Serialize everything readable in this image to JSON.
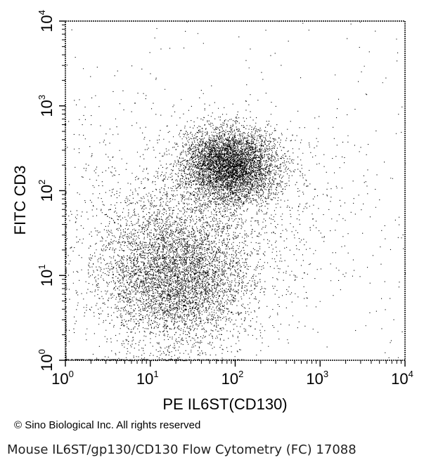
{
  "chart_data": {
    "type": "scatter",
    "xlabel": "PE  IL6ST(CD130)",
    "ylabel": "FITC CD3",
    "x_scale": "log",
    "y_scale": "log",
    "xlim": [
      1,
      10000
    ],
    "ylim": [
      1,
      10000
    ],
    "x_ticks": [
      {
        "base": "10",
        "exp": "0"
      },
      {
        "base": "10",
        "exp": "1"
      },
      {
        "base": "10",
        "exp": "2"
      },
      {
        "base": "10",
        "exp": "3"
      },
      {
        "base": "10",
        "exp": "4"
      }
    ],
    "y_ticks": [
      {
        "base": "10",
        "exp": "0"
      },
      {
        "base": "10",
        "exp": "1"
      },
      {
        "base": "10",
        "exp": "2"
      },
      {
        "base": "10",
        "exp": "3"
      },
      {
        "base": "10",
        "exp": "4"
      }
    ],
    "populations": [
      {
        "center_x": 85,
        "center_y": 200,
        "spread_log_x": 0.28,
        "spread_log_y": 0.22,
        "density": "high"
      },
      {
        "center_x": 20,
        "center_y": 10,
        "spread_log_x": 0.45,
        "spread_log_y": 0.42,
        "density": "high"
      },
      {
        "center_x": 40,
        "center_y": 50,
        "spread_log_x": 0.9,
        "spread_log_y": 0.6,
        "density": "sparse"
      }
    ],
    "grid": false,
    "legend": "none",
    "point_color": "#000000"
  },
  "footer": {
    "copyright": "© Sino Biological Inc. All rights reserved",
    "caption": "Mouse IL6ST/gp130/CD130 Flow Cytometry (FC) 17088"
  }
}
